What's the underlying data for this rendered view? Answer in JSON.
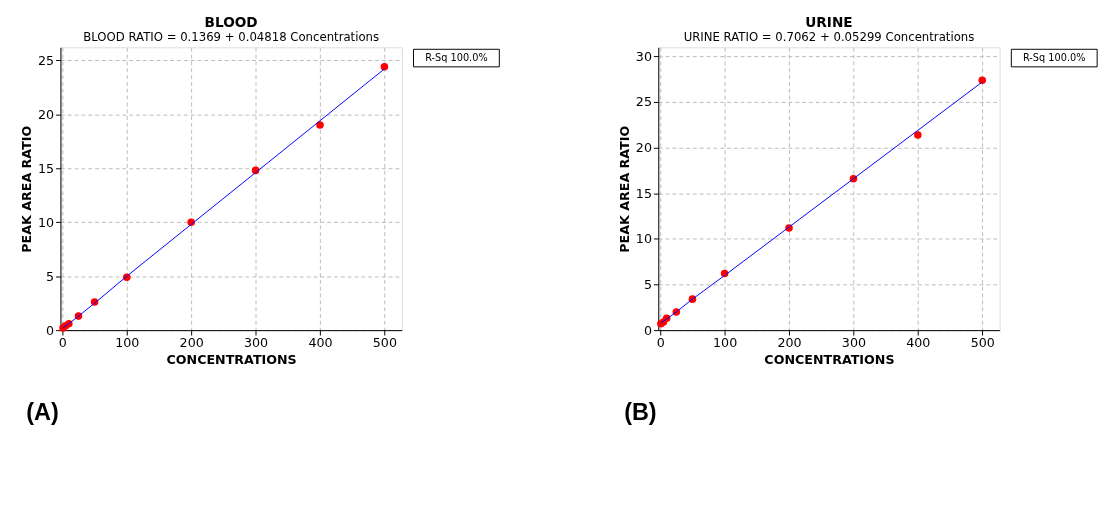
{
  "chart_data": [
    {
      "type": "scatter",
      "title": "BLOOD",
      "subtitle": "BLOOD RATIO =  0.1369 + 0.04818 Concentrations",
      "xlabel": "CONCENTRATIONS",
      "ylabel": "PEAK AREA RATIO",
      "x": [
        1,
        5,
        10,
        25,
        50,
        100,
        200,
        300,
        400,
        500
      ],
      "series": [
        {
          "marker": "circle",
          "color": "#ff0000",
          "values": [
            0.2,
            0.4,
            0.6,
            1.3,
            2.6,
            4.9,
            10.0,
            14.8,
            19.0,
            24.4
          ]
        },
        {
          "type": "line",
          "color": "#0000ff",
          "values": [
            0.2,
            0.4,
            0.6,
            1.3,
            2.5,
            5.0,
            9.8,
            14.6,
            19.4,
            24.2
          ]
        }
      ],
      "xlim": [
        -3,
        527
      ],
      "ylim": [
        0,
        26.2
      ],
      "xticks": [
        0,
        100,
        200,
        300,
        400,
        500
      ],
      "yticks": [
        0,
        5,
        10,
        15,
        20,
        25
      ],
      "grid": true,
      "line_style": "solid",
      "annotations": [
        "R-Sq      100.0%",
        "(A)"
      ]
    },
    {
      "type": "scatter",
      "title": "URINE",
      "subtitle": "URINE RATIO =  0.7062 + 0.05299 Concentrations",
      "xlabel": "CONCENTRATIONS",
      "ylabel": "PEAK AREA RATIO",
      "x": [
        1,
        5,
        10,
        25,
        50,
        100,
        200,
        300,
        400,
        500
      ],
      "series": [
        {
          "marker": "circle",
          "color": "#ff0000",
          "values": [
            0.7,
            0.9,
            1.3,
            2.0,
            3.4,
            6.2,
            11.2,
            16.6,
            21.4,
            27.4
          ]
        },
        {
          "type": "line",
          "color": "#0000ff",
          "values": [
            0.8,
            1.0,
            1.2,
            2.0,
            3.4,
            6.0,
            11.3,
            16.6,
            21.9,
            27.2
          ]
        }
      ],
      "xlim": [
        -3,
        527
      ],
      "ylim": [
        0,
        31
      ],
      "xticks": [
        0,
        100,
        200,
        300,
        400,
        500
      ],
      "yticks": [
        0,
        5,
        10,
        15,
        20,
        25,
        30
      ],
      "grid": true,
      "line_style": "solid",
      "annotations": [
        "R-Sq      100.0%",
        "(B)"
      ]
    }
  ]
}
